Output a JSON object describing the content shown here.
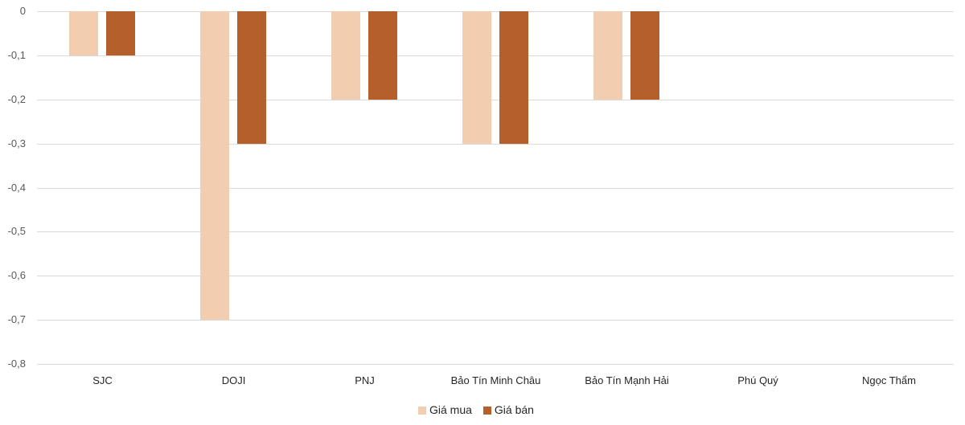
{
  "chart_data": {
    "type": "bar",
    "title": "",
    "xlabel": "",
    "ylabel": "",
    "ylim": [
      -0.8,
      0
    ],
    "yticks": [
      "0",
      "-0,1",
      "-0,2",
      "-0,3",
      "-0,4",
      "-0,5",
      "-0,6",
      "-0,7",
      "-0,8"
    ],
    "categories": [
      "SJC",
      "DOJI",
      "PNJ",
      "Bảo Tín Minh Châu",
      "Bảo Tín Mạnh Hải",
      "Phú Quý",
      "Ngọc Thẩm"
    ],
    "series": [
      {
        "name": "Giá mua",
        "color": "#f2cdb0",
        "values": [
          -0.1,
          -0.7,
          -0.2,
          -0.3,
          -0.2,
          0,
          0
        ]
      },
      {
        "name": "Giá bán",
        "color": "#b5602a",
        "values": [
          -0.1,
          -0.3,
          -0.2,
          -0.3,
          -0.2,
          0,
          0
        ]
      }
    ],
    "grid": true,
    "legend_position": "bottom"
  }
}
